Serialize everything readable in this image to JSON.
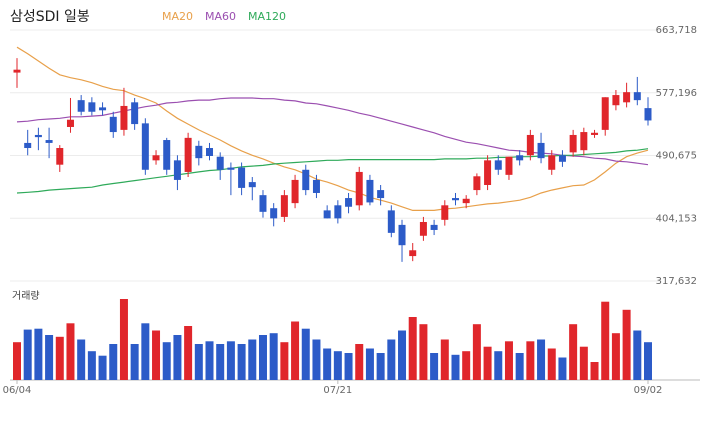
{
  "chart_data": {
    "type": "candlestick",
    "title": "삼성SDI 일봉",
    "categories": [
      "06/04",
      null,
      null,
      null,
      null,
      null,
      null,
      null,
      null,
      null,
      null,
      null,
      null,
      null,
      null,
      null,
      null,
      null,
      null,
      null,
      null,
      null,
      null,
      null,
      null,
      null,
      null,
      null,
      null,
      null,
      "07/21",
      null,
      null,
      null,
      null,
      null,
      null,
      null,
      null,
      null,
      null,
      null,
      null,
      null,
      null,
      null,
      null,
      null,
      null,
      null,
      null,
      null,
      null,
      null,
      null,
      null,
      null,
      null,
      null,
      "09/02"
    ],
    "open": [
      605000,
      508000,
      519000,
      512000,
      478000,
      530000,
      567000,
      564000,
      557000,
      544000,
      526000,
      564000,
      535000,
      484000,
      512000,
      484000,
      468000,
      504000,
      501000,
      489000,
      474000,
      474000,
      454000,
      436000,
      418000,
      406000,
      425000,
      471000,
      457000,
      415000,
      422000,
      432000,
      422000,
      457000,
      443000,
      415000,
      395000,
      352000,
      380000,
      395000,
      402000,
      432000,
      425000,
      443000,
      450000,
      484000,
      464000,
      491000,
      491000,
      508000,
      471000,
      491000,
      495000,
      498000,
      519000,
      526000,
      560000,
      564000,
      578000,
      556000
    ],
    "high": [
      625000,
      526000,
      529000,
      529000,
      505000,
      570000,
      574000,
      571000,
      564000,
      551000,
      584000,
      570000,
      542000,
      498000,
      515000,
      491000,
      522000,
      511000,
      508000,
      495000,
      481000,
      481000,
      461000,
      443000,
      425000,
      443000,
      464000,
      478000,
      464000,
      422000,
      429000,
      439000,
      475000,
      464000,
      450000,
      422000,
      402000,
      370000,
      406000,
      402000,
      429000,
      439000,
      436000,
      466000,
      491000,
      491000,
      489000,
      498000,
      526000,
      522000,
      498000,
      498000,
      526000,
      529000,
      526000,
      571000,
      581000,
      591000,
      599000,
      571000
    ],
    "low": [
      584000,
      491000,
      498000,
      487000,
      468000,
      522000,
      546000,
      546000,
      546000,
      515000,
      518000,
      526000,
      464000,
      478000,
      464000,
      443000,
      461000,
      477000,
      484000,
      457000,
      436000,
      436000,
      429000,
      405000,
      393000,
      399000,
      418000,
      436000,
      432000,
      404000,
      397000,
      411000,
      415000,
      422000,
      422000,
      378000,
      344000,
      345000,
      373000,
      381000,
      394000,
      422000,
      418000,
      436000,
      443000,
      464000,
      457000,
      477000,
      484000,
      480000,
      464000,
      475000,
      489000,
      491000,
      515000,
      518000,
      553000,
      557000,
      560000,
      532000
    ],
    "close": [
      609000,
      501000,
      516000,
      508000,
      501000,
      540000,
      551000,
      551000,
      553000,
      523000,
      559000,
      534000,
      471000,
      491000,
      471000,
      457000,
      515000,
      487000,
      490000,
      471000,
      471000,
      446000,
      447000,
      413000,
      404000,
      436000,
      457000,
      443000,
      439000,
      404000,
      404000,
      420000,
      468000,
      426000,
      432000,
      384000,
      367000,
      360000,
      399000,
      388000,
      422000,
      429000,
      431000,
      462000,
      484000,
      471000,
      489000,
      484000,
      519000,
      487000,
      491000,
      482000,
      519000,
      523000,
      522000,
      571000,
      574000,
      578000,
      567000,
      539000
    ],
    "up_color": "#e0262b",
    "down_color": "#2c5bc8",
    "ylim": [
      317632,
      663718
    ],
    "yticks": [
      {
        "value": 663718,
        "label": "663,718"
      },
      {
        "value": 577196,
        "label": "577,196"
      },
      {
        "value": 490675,
        "label": "490,675"
      },
      {
        "value": 404153,
        "label": "404,153"
      },
      {
        "value": 317632,
        "label": "317,632"
      }
    ],
    "grid": true,
    "series": [
      {
        "name": "MA20",
        "color": "#e8a04a",
        "values": [
          640000,
          631000,
          621000,
          611000,
          602000,
          598000,
          595000,
          591000,
          586000,
          582000,
          580000,
          574000,
          569000,
          563000,
          552000,
          542000,
          534000,
          526000,
          519000,
          512000,
          504000,
          497000,
          491000,
          486000,
          480000,
          475000,
          471000,
          465000,
          458000,
          454000,
          449000,
          443000,
          439000,
          433000,
          429000,
          425000,
          420000,
          415000,
          415000,
          415000,
          417000,
          418000,
          420000,
          422000,
          424000,
          425000,
          427000,
          429000,
          433000,
          439000,
          443000,
          446000,
          449000,
          450000,
          457000,
          468000,
          480000,
          489000,
          494000,
          498000
        ]
      },
      {
        "name": "MA60",
        "color": "#9b4fb0",
        "values": [
          537000,
          538000,
          540000,
          541000,
          542000,
          544000,
          544000,
          545000,
          546000,
          549000,
          552000,
          555000,
          558000,
          560000,
          563000,
          564000,
          566000,
          567000,
          567000,
          569000,
          570000,
          570000,
          570000,
          569000,
          569000,
          567000,
          566000,
          563000,
          562000,
          559000,
          556000,
          553000,
          549000,
          546000,
          542000,
          538000,
          534000,
          530000,
          526000,
          522000,
          517000,
          513000,
          509000,
          507000,
          504000,
          501000,
          498000,
          497000,
          495000,
          494000,
          493000,
          491000,
          490000,
          489000,
          487000,
          486000,
          483000,
          482000,
          480000,
          478000
        ]
      },
      {
        "name": "MA120",
        "color": "#2faa5a",
        "values": [
          439000,
          440000,
          441000,
          443000,
          444000,
          445000,
          446000,
          447000,
          450000,
          452000,
          454000,
          456000,
          458000,
          460000,
          462000,
          464000,
          466000,
          468000,
          470000,
          471000,
          473000,
          475000,
          476000,
          477000,
          479000,
          480000,
          481000,
          482000,
          483000,
          484000,
          484000,
          485000,
          485000,
          485000,
          485000,
          485000,
          485000,
          485000,
          485000,
          485000,
          486000,
          486000,
          486000,
          487000,
          487000,
          488000,
          488000,
          489000,
          489000,
          490000,
          490000,
          491000,
          491000,
          492000,
          493000,
          494000,
          495000,
          497000,
          498000,
          500000
        ]
      }
    ],
    "volume": {
      "label": "거래량",
      "ylim": [
        0,
        100
      ],
      "values": [
        42,
        56,
        57,
        50,
        48,
        63,
        45,
        32,
        27,
        40,
        90,
        40,
        63,
        55,
        42,
        50,
        60,
        40,
        43,
        40,
        43,
        40,
        45,
        50,
        52,
        42,
        65,
        57,
        45,
        35,
        32,
        30,
        40,
        35,
        30,
        45,
        55,
        70,
        62,
        30,
        45,
        28,
        32,
        62,
        37,
        32,
        43,
        30,
        43,
        45,
        35,
        25,
        62,
        37,
        20,
        87,
        52,
        78,
        55,
        42
      ]
    }
  }
}
